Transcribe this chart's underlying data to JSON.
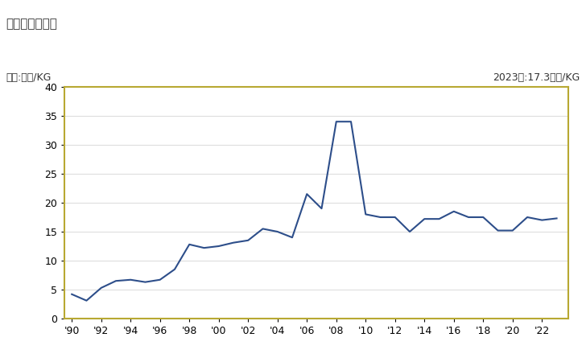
{
  "years": [
    1990,
    1991,
    1992,
    1993,
    1994,
    1995,
    1996,
    1997,
    1998,
    1999,
    2000,
    2001,
    2002,
    2003,
    2004,
    2005,
    2006,
    2007,
    2008,
    2009,
    2010,
    2011,
    2012,
    2013,
    2014,
    2015,
    2016,
    2017,
    2018,
    2019,
    2020,
    2021,
    2022,
    2023
  ],
  "values": [
    4.2,
    3.1,
    5.3,
    6.5,
    6.7,
    6.3,
    6.7,
    8.5,
    12.8,
    12.2,
    12.5,
    13.1,
    13.5,
    15.5,
    15.0,
    14.0,
    21.5,
    19.0,
    34.0,
    34.0,
    18.0,
    17.5,
    17.5,
    15.0,
    17.2,
    17.2,
    18.5,
    17.5,
    17.5,
    15.2,
    15.2,
    17.5,
    17.0,
    17.3
  ],
  "line_color": "#2d4e8a",
  "background_color": "#ffffff",
  "plot_bg_color": "#ffffff",
  "border_color": "#b8a832",
  "title": "輸入価格の推移",
  "ylabel": "単位:万円/KG",
  "annotation": "2023年:17.3万円/KG",
  "ylim": [
    0,
    40
  ],
  "yticks": [
    0,
    5,
    10,
    15,
    20,
    25,
    30,
    35,
    40
  ],
  "xtick_labels": [
    "'90",
    "'92",
    "'94",
    "'96",
    "'98",
    "'00",
    "'02",
    "'04",
    "'06",
    "'08",
    "'10",
    "'12",
    "'14",
    "'16",
    "'18",
    "'20",
    "'22"
  ],
  "xtick_years": [
    1990,
    1992,
    1994,
    1996,
    1998,
    2000,
    2002,
    2004,
    2006,
    2008,
    2010,
    2012,
    2014,
    2016,
    2018,
    2020,
    2022
  ],
  "title_fontsize": 11,
  "label_fontsize": 9,
  "tick_fontsize": 9,
  "annotation_fontsize": 9,
  "line_width": 1.5
}
